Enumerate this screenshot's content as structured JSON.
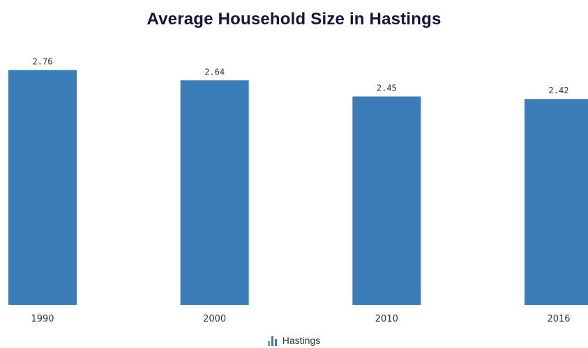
{
  "chart_data": {
    "type": "bar",
    "title": "Average Household Size in Hastings",
    "categories": [
      "1990",
      "2000",
      "2010",
      "2016"
    ],
    "series": [
      {
        "name": "Hastings",
        "values": [
          2.76,
          2.64,
          2.45,
          2.42
        ]
      }
    ],
    "data_labels": [
      "2.76",
      "2.64",
      "2.45",
      "2.42"
    ],
    "xlabel": "",
    "ylabel": "",
    "ylim": [
      0,
      3.06
    ],
    "grid": false,
    "legend_position": "bottom-center",
    "bar_color": "#3a7db8",
    "legend_icon": "bar-chart-icon"
  }
}
